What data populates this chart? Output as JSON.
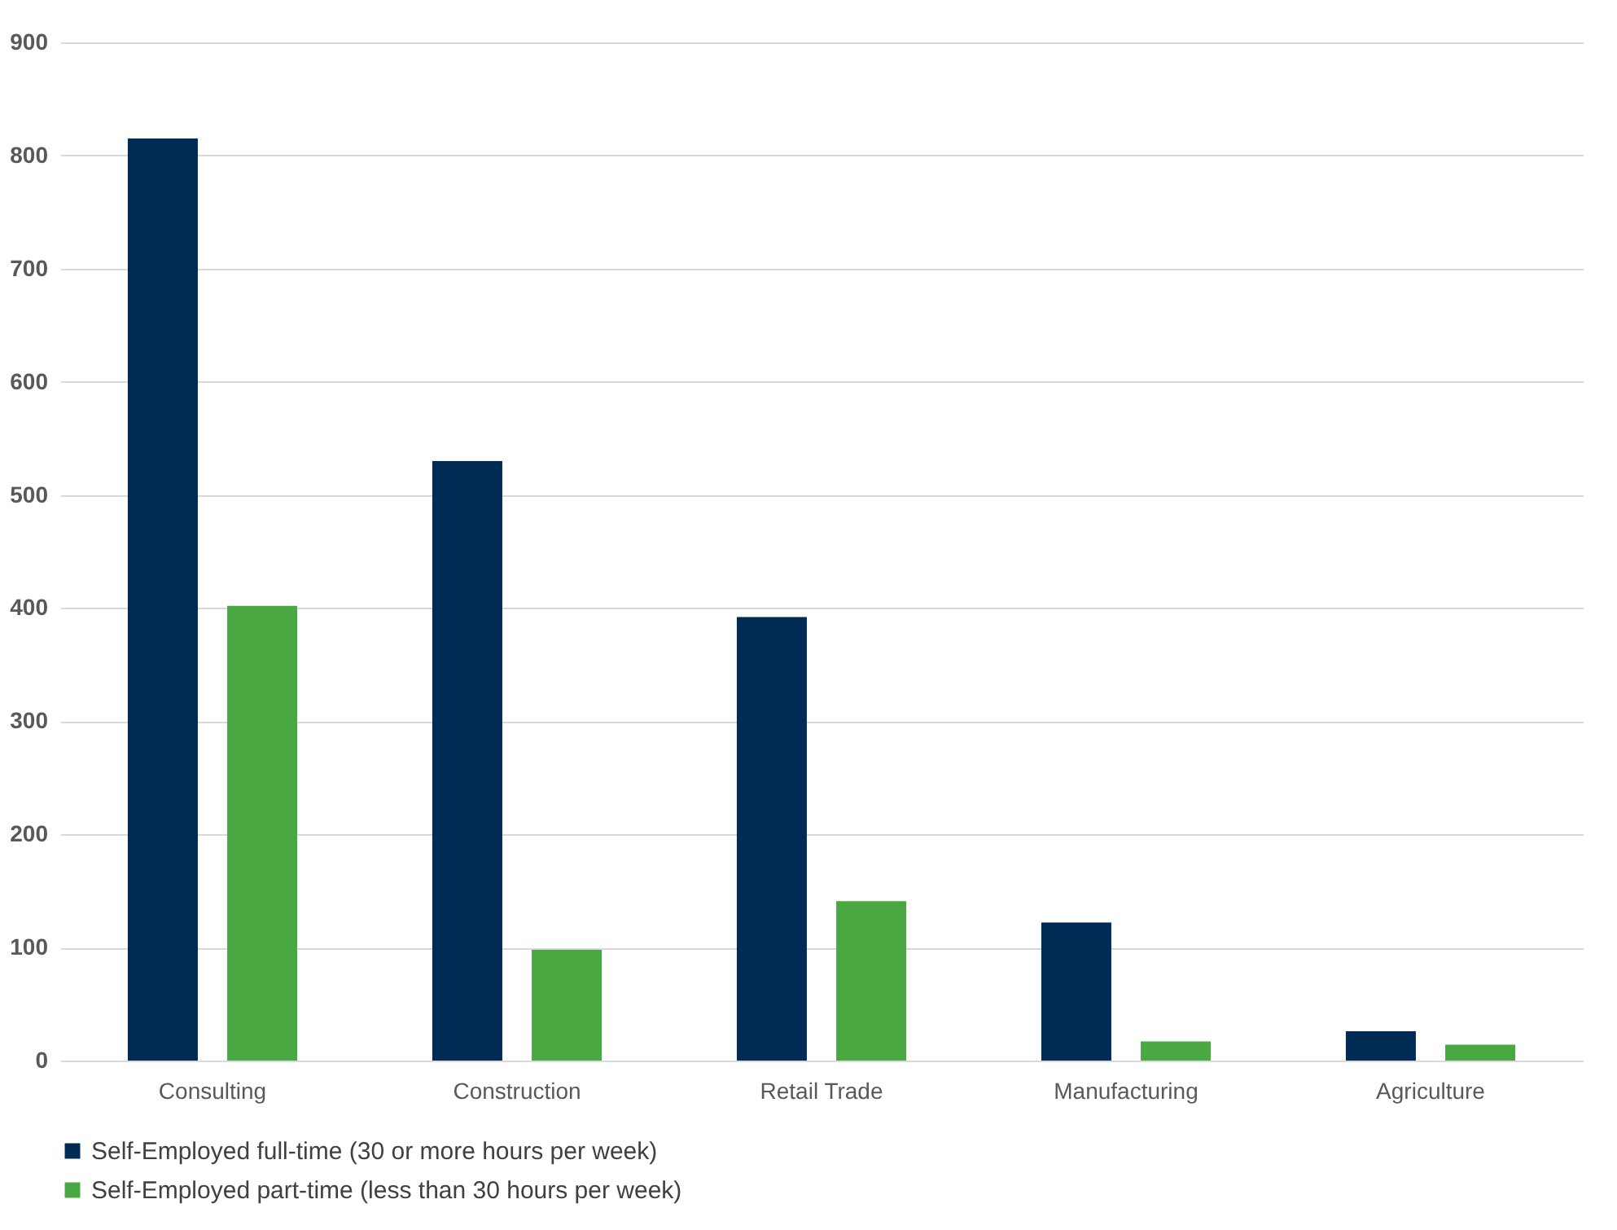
{
  "chart_data": {
    "type": "bar",
    "categories": [
      "Consulting",
      "Construction",
      "Retail Trade",
      "Manufacturing",
      "Agriculture"
    ],
    "series": [
      {
        "name": "Self-Employed full-time (30 or more hours per week)",
        "color": "#002b55",
        "values": [
          815,
          530,
          392,
          122,
          26
        ]
      },
      {
        "name": "Self-Employed part-time (less than 30 hours per week)",
        "color": "#4aa842",
        "values": [
          402,
          98,
          141,
          17,
          14
        ]
      }
    ],
    "ylim": [
      0,
      900
    ],
    "yticks": [
      0,
      100,
      200,
      300,
      400,
      500,
      600,
      700,
      800,
      900
    ],
    "grid": "y",
    "legend": "bottom"
  }
}
